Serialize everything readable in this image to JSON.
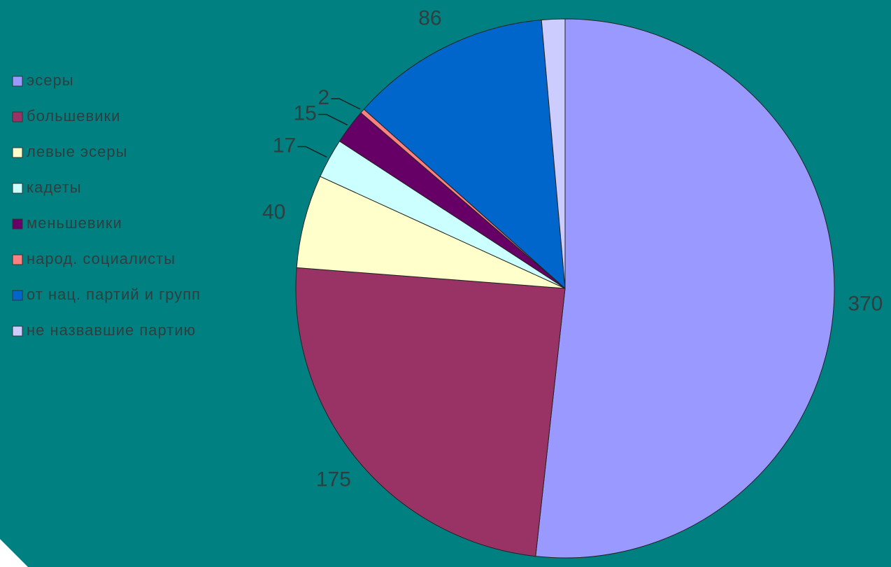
{
  "chart_data": {
    "type": "pie",
    "categories": [
      "эсеры",
      "большевики",
      "левые эсеры",
      "кадеты",
      "меньшевики",
      "народ. социалисты",
      "от нац. партий и групп",
      "не назвавшие партию"
    ],
    "values": [
      370,
      175,
      40,
      17,
      15,
      2,
      86,
      10
    ],
    "value_labels": [
      "370",
      "175",
      "40",
      "17",
      "15",
      "2",
      "86",
      null
    ],
    "colors": [
      "#9999ff",
      "#993366",
      "#ffffcc",
      "#ccffff",
      "#660066",
      "#ff8080",
      "#0066cc",
      "#ccccff"
    ],
    "legend": "left"
  }
}
